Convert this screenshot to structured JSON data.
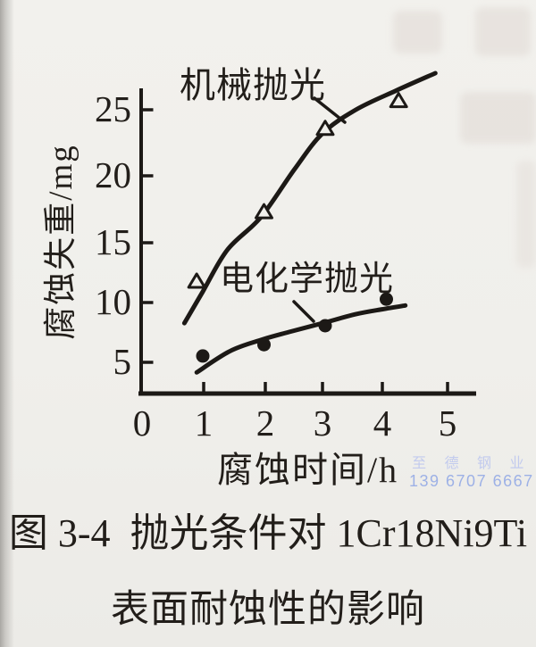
{
  "page": {
    "background_color": "#f0efeb",
    "ink_color": "#1c1916"
  },
  "chart_data": {
    "type": "line",
    "title": "抛光条件对 1Cr18Ni9Ti 表面耐蚀性的影响",
    "xlabel": "腐蚀时间/h",
    "ylabel": "腐蚀失重/mg",
    "x_ticks": [
      0,
      1,
      2,
      3,
      4,
      5
    ],
    "y_ticks": [
      5,
      10,
      15,
      20,
      25
    ],
    "xlim": [
      0,
      5.5
    ],
    "ylim": [
      2,
      29
    ],
    "grid": false,
    "legend_position": "inline-annotations",
    "series": [
      {
        "name": "机械抛光",
        "marker": "open-triangle",
        "points": [
          [
            0.9,
            11.4
          ],
          [
            2,
            16.9
          ],
          [
            3,
            23.5
          ],
          [
            4.2,
            25.7
          ]
        ],
        "fit_curve": [
          [
            0.7,
            8.1
          ],
          [
            1.0,
            10.6
          ],
          [
            1.4,
            13.9
          ],
          [
            1.95,
            16.5
          ],
          [
            2.5,
            20.3
          ],
          [
            2.95,
            23.1
          ],
          [
            3.5,
            25.0
          ],
          [
            4.15,
            26.5
          ],
          [
            4.8,
            27.9
          ]
        ]
      },
      {
        "name": "电化学抛光",
        "marker": "filled-circle",
        "points": [
          [
            1,
            5.5
          ],
          [
            2,
            6.4
          ],
          [
            3,
            7.9
          ],
          [
            4,
            10.0
          ]
        ],
        "fit_curve": [
          [
            0.9,
            4.2
          ],
          [
            1.45,
            5.9
          ],
          [
            1.97,
            6.8
          ],
          [
            2.41,
            7.4
          ],
          [
            2.96,
            8.1
          ],
          [
            3.49,
            8.8
          ],
          [
            3.93,
            9.2
          ],
          [
            4.31,
            9.5
          ]
        ]
      }
    ]
  },
  "caption": {
    "figure_label": "图 3-4",
    "title": "抛光条件对 1Cr18Ni9Ti",
    "subtitle": "表面耐蚀性的影响"
  },
  "watermark": {
    "company": "至 德 钢 业",
    "phone": "139 6707 6667",
    "company_color": "#c2cbee",
    "phone_color": "#9db1e6"
  }
}
